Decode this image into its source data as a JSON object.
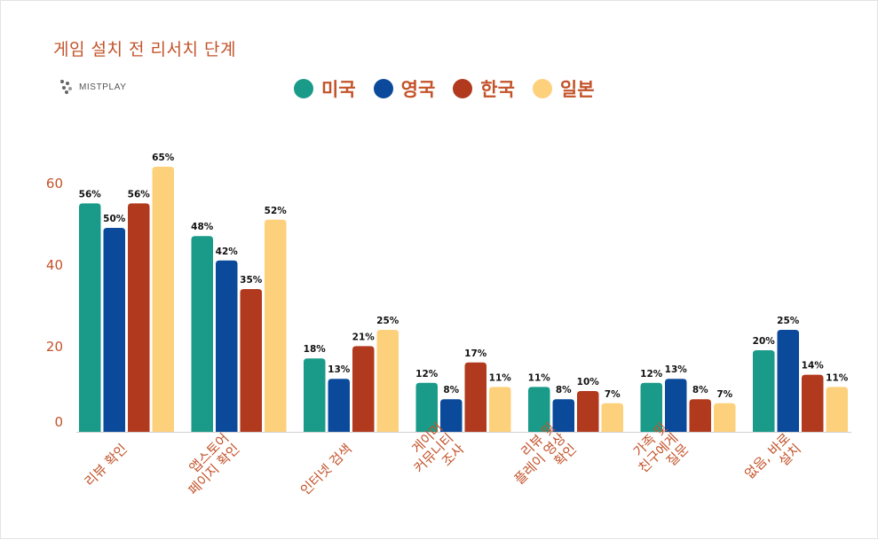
{
  "title": "게임 설치 전 리서치 단계",
  "logo": {
    "text": "MISTPLAY"
  },
  "colors": {
    "accent": "#c3532a",
    "us": "#1a9a88",
    "uk": "#0b4a9a",
    "kr": "#b13a1e",
    "jp": "#fdd07c"
  },
  "chart_data": {
    "type": "bar",
    "title": "게임 설치 전 리서치 단계",
    "xlabel": "",
    "ylabel": "",
    "ylim": [
      0,
      65
    ],
    "yticks": [
      0,
      20,
      40,
      60
    ],
    "grid": false,
    "legend_position": "top",
    "categories": [
      [
        "리뷰 확인"
      ],
      [
        "앱스토어",
        "페이지 확인"
      ],
      [
        "인터넷 검색"
      ],
      [
        "게이머",
        "커뮤니티",
        "조사"
      ],
      [
        "리뷰 및",
        "플레이 영상",
        "확인"
      ],
      [
        "가족 및",
        "친구에게",
        "질문"
      ],
      [
        "없음, 바로",
        "설치"
      ]
    ],
    "series": [
      {
        "name": "미국",
        "color": "#1a9a88",
        "values": [
          56,
          48,
          18,
          12,
          11,
          12,
          20
        ],
        "labels": [
          "56%",
          "48%",
          "18%",
          "12%",
          "11%",
          "12%",
          "20%"
        ]
      },
      {
        "name": "영국",
        "color": "#0b4a9a",
        "values": [
          50,
          42,
          13,
          8,
          8,
          13,
          25
        ],
        "labels": [
          "50%",
          "42%",
          "13%",
          "8%",
          "8%",
          "13%",
          "25%"
        ]
      },
      {
        "name": "한국",
        "color": "#b13a1e",
        "values": [
          56,
          35,
          21,
          17,
          10,
          8,
          14
        ],
        "labels": [
          "56%",
          "35%",
          "21%",
          "17%",
          "10%",
          "8%",
          "14%"
        ]
      },
      {
        "name": "일본",
        "color": "#fdd07c",
        "values": [
          65,
          52,
          25,
          11,
          7,
          7,
          11
        ],
        "labels": [
          "65%",
          "52%",
          "25%",
          "11%",
          "7%",
          "7%",
          "11%"
        ]
      }
    ]
  }
}
